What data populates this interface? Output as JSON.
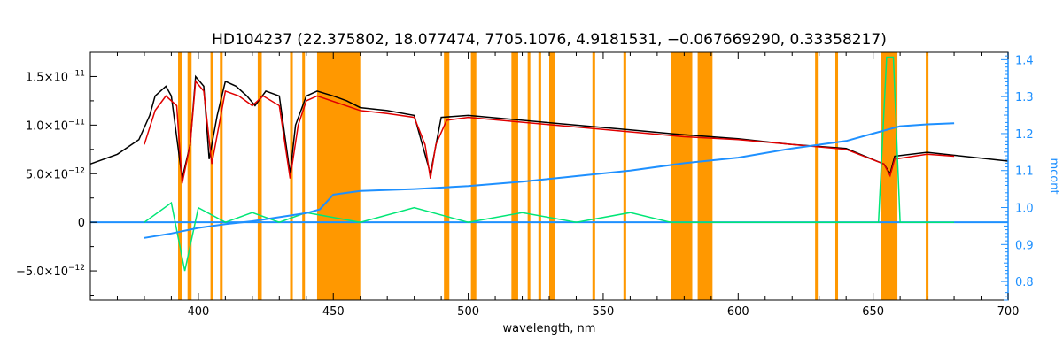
{
  "chart_data": {
    "type": "line",
    "title": "HD104237    (22.375802, 18.077474, 7705.1076, 4.9181531, −0.067669290, 0.33358217)",
    "xlabel": "wavelength, nm",
    "ylabel_left": "",
    "ylabel_right": "mcont",
    "xlim": [
      360,
      700
    ],
    "ylim_left": [
      -8e-12,
      1.75e-11
    ],
    "ylim_right": [
      0.75,
      1.42
    ],
    "grid": false,
    "x_ticks": [
      400,
      450,
      500,
      550,
      600,
      650,
      700
    ],
    "x_tick_labels": [
      "400",
      "450",
      "500",
      "550",
      "600",
      "650",
      "700"
    ],
    "y_left_ticks": [
      -5e-12,
      0,
      5e-12,
      1e-11,
      1.5e-11
    ],
    "y_left_tick_labels": [
      {
        "mant": "−5.0×10",
        "exp": "−12"
      },
      {
        "mant": "0",
        "exp": ""
      },
      {
        "mant": "5.0×10",
        "exp": "−12"
      },
      {
        "mant": "1.0×10",
        "exp": "−11"
      },
      {
        "mant": "1.5×10",
        "exp": "−11"
      }
    ],
    "y_right_ticks": [
      0.8,
      0.9,
      1.0,
      1.1,
      1.2,
      1.3,
      1.4
    ],
    "y_right_tick_labels": [
      "0.8",
      "0.9",
      "1.0",
      "1.1",
      "1.2",
      "1.3",
      "1.4"
    ],
    "masked_regions": [
      [
        392.5,
        394.0
      ],
      [
        396.0,
        397.5
      ],
      [
        404.5,
        405.5
      ],
      [
        408.0,
        409.0
      ],
      [
        422.0,
        423.5
      ],
      [
        434.0,
        435.0
      ],
      [
        438.5,
        439.5
      ],
      [
        444.0,
        460.0
      ],
      [
        491.0,
        493.0
      ],
      [
        501.0,
        503.0
      ],
      [
        516.0,
        518.5
      ],
      [
        522.0,
        523.0
      ],
      [
        526.0,
        527.0
      ],
      [
        530.0,
        532.0
      ],
      [
        546.0,
        547.0
      ],
      [
        557.5,
        558.5
      ],
      [
        575.0,
        583.0
      ],
      [
        585.0,
        590.5
      ],
      [
        628.5,
        629.5
      ],
      [
        636.0,
        637.0
      ],
      [
        653.0,
        659.0
      ],
      [
        669.5,
        670.5
      ]
    ],
    "series": [
      {
        "color": "#000000",
        "x": [
          360,
          370,
          378,
          382,
          384,
          388,
          390,
          394,
          397,
          399,
          402,
          404,
          407,
          410,
          414,
          418,
          421,
          425,
          430,
          434,
          436,
          440,
          444,
          450,
          455,
          460,
          470,
          480,
          486,
          490,
          500,
          520,
          540,
          560,
          580,
          600,
          620,
          640,
          654,
          656.3,
          658,
          670,
          700
        ],
        "y": [
          6e-12,
          7e-12,
          8.5e-12,
          1.1e-11,
          1.3e-11,
          1.4e-11,
          1.3e-11,
          4.5e-12,
          8e-12,
          1.5e-11,
          1.4e-11,
          6.5e-12,
          1.1e-11,
          1.45e-11,
          1.4e-11,
          1.3e-11,
          1.2e-11,
          1.35e-11,
          1.3e-11,
          5e-12,
          1e-11,
          1.3e-11,
          1.35e-11,
          1.3e-11,
          1.25e-11,
          1.18e-11,
          1.15e-11,
          1.1e-11,
          5e-12,
          1.08e-11,
          1.1e-11,
          1.05e-11,
          1e-11,
          9.5e-12,
          9e-12,
          8.6e-12,
          8e-12,
          7.6e-12,
          6e-12,
          5e-12,
          6.8e-12,
          7.2e-12,
          6.3e-12
        ]
      },
      {
        "color": "#e00000",
        "x": [
          380,
          384,
          388,
          392,
          394,
          397,
          399,
          402,
          405,
          410,
          415,
          420,
          424,
          430,
          434,
          437,
          440,
          444,
          460,
          470,
          480,
          484,
          486,
          488,
          492,
          500,
          520,
          540,
          560,
          580,
          600,
          620,
          640,
          654,
          656.3,
          658,
          670,
          680
        ],
        "y": [
          8e-12,
          1.15e-11,
          1.3e-11,
          1.2e-11,
          4e-12,
          8e-12,
          1.45e-11,
          1.35e-11,
          6e-12,
          1.35e-11,
          1.3e-11,
          1.2e-11,
          1.3e-11,
          1.2e-11,
          4.5e-12,
          1e-11,
          1.25e-11,
          1.3e-11,
          1.15e-11,
          1.12e-11,
          1.08e-11,
          8e-12,
          4.5e-12,
          8e-12,
          1.05e-11,
          1.08e-11,
          1.03e-11,
          9.8e-12,
          9.3e-12,
          8.8e-12,
          8.5e-12,
          8e-12,
          7.5e-12,
          6e-12,
          4.8e-12,
          6.5e-12,
          7e-12,
          6.8e-12
        ]
      },
      {
        "color": "#00e676",
        "x": [
          380,
          390,
          395,
          400,
          410,
          420,
          430,
          440,
          460,
          480,
          500,
          520,
          540,
          560,
          575,
          590,
          600,
          620,
          640,
          652,
          655,
          656.3,
          657.5,
          660,
          680
        ],
        "y": [
          0,
          2e-12,
          -5e-12,
          1.5e-12,
          0,
          1e-12,
          0,
          1e-12,
          0,
          1.5e-12,
          0,
          1e-12,
          0,
          1e-12,
          0,
          0,
          0,
          0,
          0,
          0,
          1.7e-11,
          1.7e-11,
          1.7e-11,
          0,
          0
        ]
      },
      {
        "color": "#1e90ff",
        "axis": "right",
        "x": [
          380,
          390,
          400,
          410,
          420,
          430,
          440,
          445,
          450,
          460,
          480,
          500,
          520,
          540,
          560,
          580,
          600,
          620,
          640,
          650,
          660,
          670,
          680
        ],
        "y": [
          0.918,
          0.93,
          0.945,
          0.955,
          0.963,
          0.974,
          0.985,
          0.995,
          1.035,
          1.045,
          1.05,
          1.058,
          1.07,
          1.085,
          1.1,
          1.12,
          1.135,
          1.16,
          1.18,
          1.2,
          1.22,
          1.225,
          1.228
        ]
      }
    ],
    "zero_line": {
      "color": "#1e90ff",
      "y": 0
    }
  }
}
